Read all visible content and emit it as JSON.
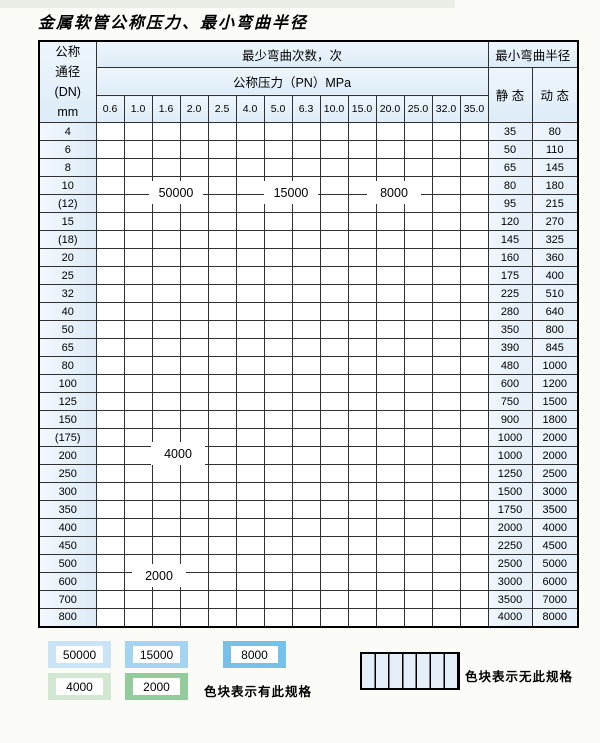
{
  "title": "金属软管公称压力、最小弯曲半径",
  "table": {
    "dn_header_lines": [
      "公称",
      "通径",
      "(DN)",
      "mm"
    ],
    "bend_cycles_header": "最少弯曲次数，次",
    "pressure_header": "公称压力（PN）MPa",
    "radius_header": "最小弯曲半径",
    "static_header": "静 态",
    "dynamic_header": "动 态",
    "pressure_columns": [
      "0.6",
      "1.0",
      "1.6",
      "2.0",
      "2.5",
      "4.0",
      "5.0",
      "6.3",
      "10.0",
      "15.0",
      "20.0",
      "25.0",
      "32.0",
      "35.0"
    ],
    "cell_code_meaning": {
      "b1": "50000次",
      "b2": "15000次",
      "b3": "8000次",
      "g1": "4000次",
      "g2": "2000次",
      "x": "无此规格"
    },
    "rows": [
      {
        "dn": "4",
        "cells": [
          "b1",
          "b1",
          "b1",
          "b1",
          "b1",
          "b2",
          "b2",
          "b2",
          "b2",
          "b3",
          "b3",
          "b3",
          "b3",
          "b3"
        ],
        "static": "35",
        "dynamic": "80"
      },
      {
        "dn": "6",
        "cells": [
          "b1",
          "b1",
          "b1",
          "b1",
          "b1",
          "b2",
          "b2",
          "b2",
          "b2",
          "b3",
          "b3",
          "b3",
          "x",
          "x"
        ],
        "static": "50",
        "dynamic": "110"
      },
      {
        "dn": "8",
        "cells": [
          "b1",
          "b1",
          "b1",
          "b1",
          "b1",
          "b2",
          "b2",
          "b2",
          "b2",
          "b3",
          "b3",
          "b3",
          "x",
          "x"
        ],
        "static": "65",
        "dynamic": "145"
      },
      {
        "dn": "10",
        "cells": [
          "b1",
          "b1",
          "b1",
          "b1",
          "b1",
          "b2",
          "b2",
          "b2",
          "b2",
          "b3",
          "b3",
          "b3",
          "x",
          "x"
        ],
        "static": "80",
        "dynamic": "180"
      },
      {
        "dn": "(12)",
        "cells": [
          "b1",
          "b1",
          "b1",
          "b1",
          "b1",
          "b2",
          "b2",
          "b2",
          "b2",
          "b3",
          "b3",
          "b3",
          "x",
          "x"
        ],
        "static": "95",
        "dynamic": "215"
      },
      {
        "dn": "15",
        "cells": [
          "b1",
          "b1",
          "b1",
          "b1",
          "b1",
          "b2",
          "b2",
          "b2",
          "b3",
          "b3",
          "b3",
          "b3",
          "x",
          "x"
        ],
        "static": "120",
        "dynamic": "270"
      },
      {
        "dn": "(18)",
        "cells": [
          "b1",
          "b1",
          "b1",
          "b1",
          "b1",
          "b2",
          "b2",
          "b2",
          "b3",
          "b3",
          "b3",
          "x",
          "x",
          "x"
        ],
        "static": "145",
        "dynamic": "325"
      },
      {
        "dn": "20",
        "cells": [
          "b1",
          "b1",
          "b1",
          "b1",
          "b1",
          "b2",
          "b2",
          "b2",
          "b3",
          "b3",
          "b3",
          "x",
          "x",
          "x"
        ],
        "static": "160",
        "dynamic": "360"
      },
      {
        "dn": "25",
        "cells": [
          "b1",
          "b1",
          "b1",
          "b1",
          "b1",
          "b2",
          "b2",
          "b2",
          "b3",
          "b3",
          "x",
          "x",
          "x",
          "x"
        ],
        "static": "175",
        "dynamic": "400"
      },
      {
        "dn": "32",
        "cells": [
          "b1",
          "b1",
          "b1",
          "b1",
          "b1",
          "b1",
          "b2",
          "b2",
          "b3",
          "x",
          "x",
          "x",
          "x",
          "x"
        ],
        "static": "225",
        "dynamic": "510"
      },
      {
        "dn": "40",
        "cells": [
          "b1",
          "b1",
          "b1",
          "b1",
          "b1",
          "b1",
          "b2",
          "b2",
          "b3",
          "x",
          "x",
          "x",
          "x",
          "x"
        ],
        "static": "280",
        "dynamic": "640"
      },
      {
        "dn": "50",
        "cells": [
          "b1",
          "b1",
          "b1",
          "b1",
          "b1",
          "b1",
          "b2",
          "b2",
          "x",
          "x",
          "x",
          "x",
          "x",
          "x"
        ],
        "static": "350",
        "dynamic": "800"
      },
      {
        "dn": "65",
        "cells": [
          "b1",
          "b1",
          "b1",
          "b1",
          "b1",
          "b1",
          "b2",
          "b2",
          "x",
          "x",
          "x",
          "x",
          "x",
          "x"
        ],
        "static": "390",
        "dynamic": "845"
      },
      {
        "dn": "80",
        "cells": [
          "b1",
          "b1",
          "b1",
          "b1",
          "b1",
          "b2",
          "b2",
          "x",
          "x",
          "x",
          "x",
          "x",
          "x",
          "x"
        ],
        "static": "480",
        "dynamic": "1000"
      },
      {
        "dn": "100",
        "cells": [
          "g1",
          "g1",
          "g1",
          "g1",
          "g1",
          "g1",
          "x",
          "x",
          "x",
          "x",
          "x",
          "x",
          "x",
          "x"
        ],
        "static": "600",
        "dynamic": "1200"
      },
      {
        "dn": "125",
        "cells": [
          "g1",
          "g1",
          "g1",
          "g1",
          "g1",
          "g1",
          "x",
          "x",
          "x",
          "x",
          "x",
          "x",
          "x",
          "x"
        ],
        "static": "750",
        "dynamic": "1500"
      },
      {
        "dn": "150",
        "cells": [
          "g1",
          "g1",
          "g1",
          "g1",
          "g1",
          "g1",
          "x",
          "x",
          "x",
          "x",
          "x",
          "x",
          "x",
          "x"
        ],
        "static": "900",
        "dynamic": "1800"
      },
      {
        "dn": "(175)",
        "cells": [
          "g1",
          "g1",
          "g1",
          "g1",
          "g1",
          "g1",
          "x",
          "x",
          "x",
          "x",
          "x",
          "x",
          "x",
          "x"
        ],
        "static": "1000",
        "dynamic": "2000"
      },
      {
        "dn": "200",
        "cells": [
          "g1",
          "g1",
          "g1",
          "g1",
          "g1",
          "g1",
          "x",
          "x",
          "x",
          "x",
          "x",
          "x",
          "x",
          "x"
        ],
        "static": "1000",
        "dynamic": "2000"
      },
      {
        "dn": "250",
        "cells": [
          "g1",
          "g1",
          "g1",
          "g1",
          "g1",
          "g1",
          "x",
          "x",
          "x",
          "x",
          "x",
          "x",
          "x",
          "x"
        ],
        "static": "1250",
        "dynamic": "2500"
      },
      {
        "dn": "300",
        "cells": [
          "g1",
          "g1",
          "g1",
          "g1",
          "g1",
          "g1",
          "x",
          "x",
          "x",
          "x",
          "x",
          "x",
          "x",
          "x"
        ],
        "static": "1500",
        "dynamic": "3000"
      },
      {
        "dn": "350",
        "cells": [
          "g2",
          "g2",
          "g2",
          "g2",
          "g2",
          "x",
          "x",
          "x",
          "x",
          "x",
          "x",
          "x",
          "x",
          "x"
        ],
        "static": "1750",
        "dynamic": "3500"
      },
      {
        "dn": "400",
        "cells": [
          "g2",
          "g2",
          "g2",
          "g2",
          "g2",
          "x",
          "x",
          "x",
          "x",
          "x",
          "x",
          "x",
          "x",
          "x"
        ],
        "static": "2000",
        "dynamic": "4000"
      },
      {
        "dn": "450",
        "cells": [
          "g2",
          "g2",
          "g2",
          "g2",
          "g2",
          "x",
          "x",
          "x",
          "x",
          "x",
          "x",
          "x",
          "x",
          "x"
        ],
        "static": "2250",
        "dynamic": "4500"
      },
      {
        "dn": "500",
        "cells": [
          "g2",
          "g2",
          "g2",
          "g2",
          "g2",
          "x",
          "x",
          "x",
          "x",
          "x",
          "x",
          "x",
          "x",
          "x"
        ],
        "static": "2500",
        "dynamic": "5000"
      },
      {
        "dn": "600",
        "cells": [
          "g2",
          "g2",
          "g2",
          "g2",
          "x",
          "x",
          "x",
          "x",
          "x",
          "x",
          "x",
          "x",
          "x",
          "x"
        ],
        "static": "3000",
        "dynamic": "6000"
      },
      {
        "dn": "700",
        "cells": [
          "g2",
          "g2",
          "g2",
          "x",
          "x",
          "x",
          "x",
          "x",
          "x",
          "x",
          "x",
          "x",
          "x",
          "x"
        ],
        "static": "3500",
        "dynamic": "7000"
      },
      {
        "dn": "800",
        "cells": [
          "g2",
          "g2",
          "g2",
          "x",
          "x",
          "x",
          "x",
          "x",
          "x",
          "x",
          "x",
          "x",
          "x",
          "x"
        ],
        "static": "4000",
        "dynamic": "8000"
      }
    ]
  },
  "overlay_labels": [
    {
      "text": "50000"
    },
    {
      "text": "15000"
    },
    {
      "text": "8000"
    },
    {
      "text": "4000"
    },
    {
      "text": "2000"
    }
  ],
  "legend": {
    "swatches": [
      {
        "label": "50000",
        "type": "b1"
      },
      {
        "label": "15000",
        "type": "b2"
      },
      {
        "label": "8000",
        "type": "b3"
      },
      {
        "label": "4000",
        "type": "g1"
      },
      {
        "label": "2000",
        "type": "g2"
      }
    ],
    "has_spec_text": "色块表示有此规格",
    "no_spec_text": "色块表示无此规格"
  },
  "colors": {
    "blue_50000": "#cde4f6",
    "blue_15000": "#a4d4f0",
    "blue_8000": "#76c1e9",
    "green_4000": "#d3e8d3",
    "green_2000": "#93cb9c",
    "striped_bg": "#eef4fb",
    "grid_line": "#313131"
  }
}
